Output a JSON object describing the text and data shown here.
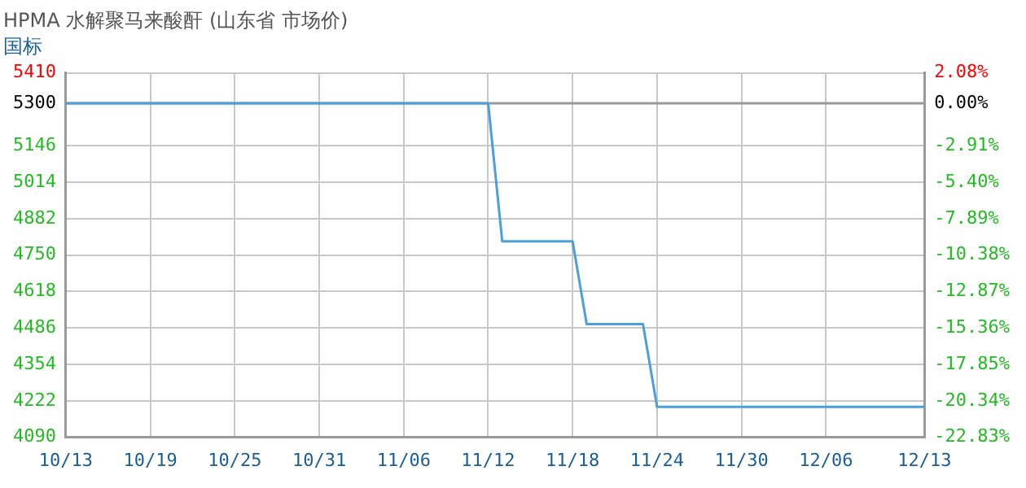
{
  "chart_data": {
    "type": "line",
    "title": "HPMA 水解聚马来酸酐 (山东省 市场价)",
    "subtitle": "国标",
    "x": [
      "--10-13",
      "--11-12",
      "--11-13",
      "--11-18",
      "--11-19",
      "--11-23",
      "--11-24",
      "--12-13"
    ],
    "series": [
      {
        "color": "#4a9fdc",
        "values": [
          5300,
          5300,
          4800,
          4800,
          4500,
          4500,
          4200,
          4200
        ]
      }
    ],
    "xlim": [
      "--10-13",
      "--12-13"
    ],
    "xticks": [
      {
        "value": "--10-13",
        "label": "10/13"
      },
      {
        "value": "--10-19",
        "label": "10/19"
      },
      {
        "value": "--10-25",
        "label": "10/25"
      },
      {
        "value": "--10-31",
        "label": "10/31"
      },
      {
        "value": "--11-06",
        "label": "11/06"
      },
      {
        "value": "--11-12",
        "label": "11/12"
      },
      {
        "value": "--11-18",
        "label": "11/18"
      },
      {
        "value": "--11-24",
        "label": "11/24"
      },
      {
        "value": "--11-30",
        "label": "11/30"
      },
      {
        "value": "--12-06",
        "label": "12/06"
      },
      {
        "value": "--12-13",
        "label": "12/13"
      }
    ],
    "ylim": [
      4090,
      5410
    ],
    "yticks": [
      4090,
      4222,
      4354,
      4486,
      4618,
      4750,
      4882,
      5014,
      5146,
      5300,
      5410
    ],
    "y2lim": [
      -22.83,
      2.08
    ],
    "y2ticks": [
      {
        "value": -22.83,
        "label": "-22.83%"
      },
      {
        "value": -20.34,
        "label": "-20.34%"
      },
      {
        "value": -17.85,
        "label": "-17.85%"
      },
      {
        "value": -15.36,
        "label": "-15.36%"
      },
      {
        "value": -12.87,
        "label": "-12.87%"
      },
      {
        "value": -10.38,
        "label": "-10.38%"
      },
      {
        "value": -7.89,
        "label": "-7.89%"
      },
      {
        "value": -5.4,
        "label": "-5.40%"
      },
      {
        "value": -2.91,
        "label": "-2.91%"
      },
      {
        "value": 0,
        "label": "0.00%"
      },
      {
        "value": 2.08,
        "label": "2.08%"
      }
    ],
    "ref_lines": [
      {
        "axis": "y",
        "value": 5300,
        "color": "#999999"
      }
    ],
    "grid": true,
    "legend": false,
    "marker": "none",
    "line_style": "solid"
  }
}
